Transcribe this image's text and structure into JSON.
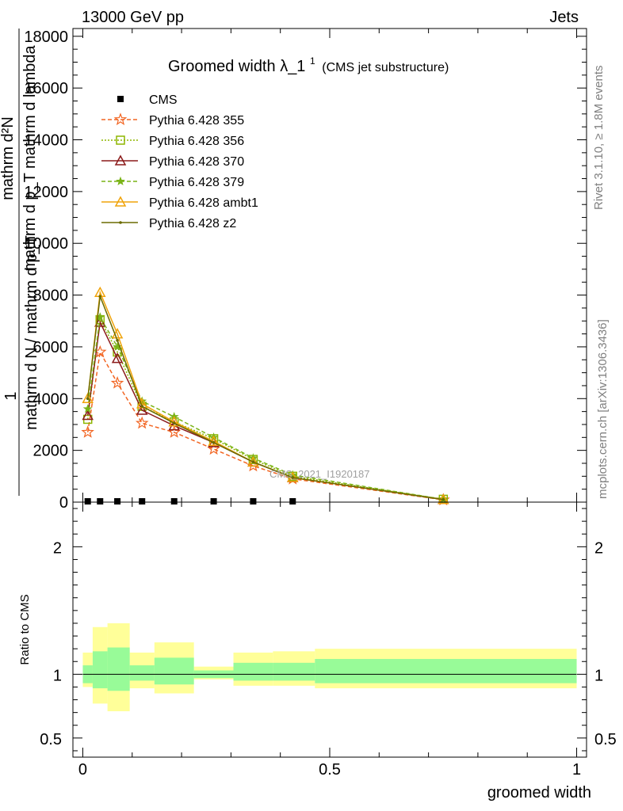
{
  "header": {
    "left": "13000 GeV pp",
    "right": "Jets"
  },
  "side_text": {
    "rivet": "Rivet 3.1.10, ≥ 1.8M events",
    "mcplots": "mcplots.cern.ch [arXiv:1306.3436]"
  },
  "watermark": "CMS_2021_I1920187",
  "chart_data": [
    {
      "type": "line",
      "title": "Groomed width",
      "title_symbol": "λ_1",
      "title_sup": "1",
      "subtitle": "(CMS jet substructure)",
      "ylabel_lines": [
        "1",
        "mathrm d N / mathrm d p_T",
        "mathrm d²N",
        "mathrm d p_T mathrm d lambda"
      ],
      "xlim": [
        -0.02,
        1.02
      ],
      "ylim": [
        0,
        18300
      ],
      "yticks": [
        0,
        2000,
        4000,
        6000,
        8000,
        10000,
        12000,
        14000,
        16000,
        18000
      ],
      "ytick_labels": [
        "0",
        "2000",
        "4000",
        "6000",
        "8000",
        "10000",
        "12000",
        "14000",
        "16000",
        "18000"
      ],
      "legend_position": "top-left",
      "series": [
        {
          "name": "CMS",
          "color": "#000000",
          "marker": "square",
          "dash": "",
          "x": [
            0.01,
            0.035,
            0.07,
            0.12,
            0.185,
            0.265,
            0.345,
            0.425
          ],
          "y": [
            0,
            0,
            0,
            0,
            0,
            0,
            0,
            0
          ]
        },
        {
          "name": "Pythia 6.428 355",
          "color": "#f26522",
          "marker": "star",
          "dash": "5,3",
          "x": [
            0.01,
            0.035,
            0.07,
            0.12,
            0.185,
            0.265,
            0.345,
            0.425,
            0.73
          ],
          "y": [
            2700,
            5800,
            4600,
            3050,
            2700,
            2050,
            1400,
            900,
            90
          ]
        },
        {
          "name": "Pythia 6.428 356",
          "color": "#8db600",
          "marker": "open-square",
          "dash": "2,2",
          "x": [
            0.01,
            0.035,
            0.07,
            0.12,
            0.185,
            0.265,
            0.345,
            0.425,
            0.73
          ],
          "y": [
            3200,
            7050,
            5800,
            3700,
            3100,
            2450,
            1650,
            1000,
            110
          ]
        },
        {
          "name": "Pythia 6.428 370",
          "color": "#8b1a1a",
          "marker": "open-triangle",
          "dash": "",
          "x": [
            0.01,
            0.035,
            0.07,
            0.12,
            0.185,
            0.265,
            0.345,
            0.425,
            0.73
          ],
          "y": [
            3350,
            6950,
            5550,
            3550,
            2950,
            2300,
            1550,
            950,
            100
          ]
        },
        {
          "name": "Pythia 6.428 379",
          "color": "#7ab317",
          "marker": "small-star",
          "dash": "5,3",
          "x": [
            0.01,
            0.035,
            0.07,
            0.12,
            0.185,
            0.265,
            0.345,
            0.425,
            0.73
          ],
          "y": [
            3600,
            7150,
            6000,
            3900,
            3300,
            2500,
            1700,
            1050,
            110
          ]
        },
        {
          "name": "Pythia 6.428 ambt1",
          "color": "#f0a30a",
          "marker": "open-triangle",
          "dash": "",
          "x": [
            0.01,
            0.035,
            0.07,
            0.12,
            0.185,
            0.265,
            0.345,
            0.425,
            0.73
          ],
          "y": [
            4000,
            8100,
            6500,
            3800,
            3100,
            2350,
            1550,
            950,
            100
          ]
        },
        {
          "name": "Pythia 6.428 z2",
          "color": "#6b6b00",
          "marker": "dot",
          "dash": "",
          "x": [
            0.01,
            0.035,
            0.07,
            0.12,
            0.185,
            0.265,
            0.345,
            0.425,
            0.73
          ],
          "y": [
            4000,
            7950,
            6250,
            3700,
            3050,
            2300,
            1550,
            950,
            100
          ]
        }
      ]
    },
    {
      "type": "area",
      "ylabel": "Ratio to CMS",
      "xlabel": "groomed width",
      "xlim": [
        -0.02,
        1.02
      ],
      "ylim": [
        0.35,
        2.35
      ],
      "xticks": [
        0,
        0.5,
        1
      ],
      "xtick_labels": [
        "0",
        "0.5",
        "1"
      ],
      "yticks": [
        0.5,
        1,
        2
      ],
      "ytick_labels": [
        "0.5",
        "1",
        "2"
      ],
      "reference_line": 1,
      "bins": [
        {
          "x0": 0.0,
          "x1": 0.02,
          "stat_lo": 0.93,
          "stat_hi": 1.07,
          "tot_lo": 0.9,
          "tot_hi": 1.17
        },
        {
          "x0": 0.02,
          "x1": 0.05,
          "stat_lo": 0.89,
          "stat_hi": 1.18,
          "tot_lo": 0.77,
          "tot_hi": 1.37
        },
        {
          "x0": 0.05,
          "x1": 0.095,
          "stat_lo": 0.87,
          "stat_hi": 1.21,
          "tot_lo": 0.71,
          "tot_hi": 1.4
        },
        {
          "x0": 0.095,
          "x1": 0.145,
          "stat_lo": 0.95,
          "stat_hi": 1.07,
          "tot_lo": 0.89,
          "tot_hi": 1.17
        },
        {
          "x0": 0.145,
          "x1": 0.225,
          "stat_lo": 0.92,
          "stat_hi": 1.13,
          "tot_lo": 0.85,
          "tot_hi": 1.25
        },
        {
          "x0": 0.225,
          "x1": 0.305,
          "stat_lo": 0.97,
          "stat_hi": 1.03,
          "tot_lo": 0.96,
          "tot_hi": 1.06
        },
        {
          "x0": 0.305,
          "x1": 0.385,
          "stat_lo": 0.95,
          "stat_hi": 1.09,
          "tot_lo": 0.91,
          "tot_hi": 1.17
        },
        {
          "x0": 0.385,
          "x1": 0.47,
          "stat_lo": 0.95,
          "stat_hi": 1.09,
          "tot_lo": 0.91,
          "tot_hi": 1.18
        },
        {
          "x0": 0.47,
          "x1": 1.0,
          "stat_lo": 0.93,
          "stat_hi": 1.12,
          "tot_lo": 0.89,
          "tot_hi": 1.2
        }
      ],
      "colors": {
        "stat": "#98fb98",
        "total": "#ffff99",
        "line": "#000000"
      }
    }
  ]
}
